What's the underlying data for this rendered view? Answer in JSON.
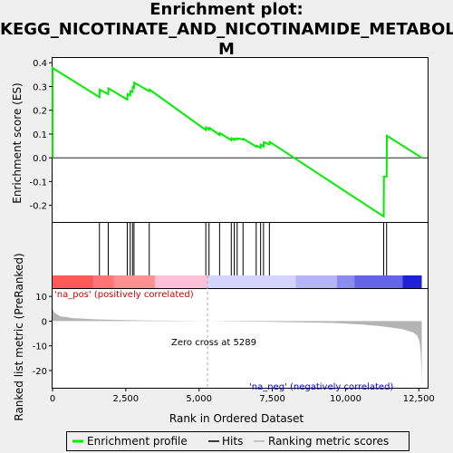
{
  "title": "Enrichment plot:\nKEGG_NICOTINATE_AND_NICOTINAMIDE_METABOLIS\nM",
  "colors": {
    "background": "#efefef",
    "plot_bg": "#ffffff",
    "es_line": "#00ee00",
    "hit": "#000000",
    "metric_fill": "#b4b4b4",
    "pos_label": "#cc0000",
    "neg_label": "#0000cc"
  },
  "chart_data": {
    "type": "line",
    "xlabel": "Rank in Ordered Dataset",
    "ylabel_es": "Enrichment score (ES)",
    "ylabel_metric": "Ranked list metric (PreRanked)",
    "x_ticks": [
      "0",
      "2,500",
      "5,000",
      "7,500",
      "10,000",
      "12,500"
    ],
    "x_tick_values": [
      0,
      2500,
      5000,
      7500,
      10000,
      12500
    ],
    "es_y_ticks": [
      "0.4",
      "0.3",
      "0.2",
      "0.1",
      "0.0",
      "-0.1",
      "-0.2"
    ],
    "es_y_tick_values": [
      0.4,
      0.3,
      0.2,
      0.1,
      0.0,
      -0.1,
      -0.2
    ],
    "metric_y_ticks": [
      "10",
      "0",
      "-10",
      "-20"
    ],
    "metric_y_tick_values": [
      10,
      0,
      -10,
      -20
    ],
    "xlim": [
      0,
      12800
    ],
    "es_ylim": [
      -0.27,
      0.42
    ],
    "metric_ylim": [
      -27,
      13
    ],
    "es_curve": [
      [
        0,
        0.0
      ],
      [
        1,
        0.378
      ],
      [
        1600,
        0.255
      ],
      [
        1610,
        0.287
      ],
      [
        1900,
        0.268
      ],
      [
        1910,
        0.292
      ],
      [
        2550,
        0.245
      ],
      [
        2560,
        0.268
      ],
      [
        2650,
        0.262
      ],
      [
        2660,
        0.281
      ],
      [
        2730,
        0.277
      ],
      [
        2740,
        0.298
      ],
      [
        2780,
        0.295
      ],
      [
        2790,
        0.316
      ],
      [
        3300,
        0.28
      ],
      [
        3310,
        0.287
      ],
      [
        5230,
        0.117
      ],
      [
        5240,
        0.128
      ],
      [
        5340,
        0.118
      ],
      [
        5350,
        0.126
      ],
      [
        5700,
        0.096
      ],
      [
        5710,
        0.104
      ],
      [
        6100,
        0.074
      ],
      [
        6110,
        0.082
      ],
      [
        6200,
        0.075
      ],
      [
        6210,
        0.081
      ],
      [
        6300,
        0.077
      ],
      [
        6310,
        0.082
      ],
      [
        6500,
        0.077
      ],
      [
        6510,
        0.08
      ],
      [
        6950,
        0.047
      ],
      [
        6960,
        0.051
      ],
      [
        7100,
        0.042
      ],
      [
        7110,
        0.055
      ],
      [
        7200,
        0.047
      ],
      [
        7210,
        0.066
      ],
      [
        7400,
        0.056
      ],
      [
        7410,
        0.067
      ],
      [
        11300,
        -0.247
      ],
      [
        11310,
        -0.079
      ],
      [
        11400,
        -0.079
      ],
      [
        11410,
        0.093
      ],
      [
        12600,
        0.0
      ]
    ],
    "hits": [
      1600,
      1900,
      2550,
      2650,
      2730,
      2780,
      3300,
      5230,
      5340,
      5700,
      6100,
      6200,
      6300,
      6500,
      6950,
      7100,
      7200,
      7400,
      11300,
      11400
    ],
    "metric_curve": [
      [
        0,
        5.0
      ],
      [
        60,
        3.5
      ],
      [
        250,
        2.0
      ],
      [
        700,
        1.2
      ],
      [
        1500,
        0.7
      ],
      [
        3000,
        0.3
      ],
      [
        5289,
        0.0
      ],
      [
        7500,
        -0.3
      ],
      [
        9500,
        -0.7
      ],
      [
        10500,
        -1.3
      ],
      [
        11300,
        -2.2
      ],
      [
        11900,
        -3.2
      ],
      [
        12300,
        -4.5
      ],
      [
        12450,
        -6.0
      ],
      [
        12520,
        -8.0
      ],
      [
        12560,
        -12.0
      ],
      [
        12590,
        -20.0
      ],
      [
        12600,
        -26.0
      ]
    ],
    "color_bar": [
      {
        "from": 0,
        "to": 1400,
        "color": "#ff5a5a"
      },
      {
        "from": 1400,
        "to": 2100,
        "color": "#ff7474"
      },
      {
        "from": 2100,
        "to": 3500,
        "color": "#ff9090"
      },
      {
        "from": 3500,
        "to": 5289,
        "color": "#ffc0d8"
      },
      {
        "from": 5289,
        "to": 8300,
        "color": "#d4d4ff"
      },
      {
        "from": 8300,
        "to": 9700,
        "color": "#b4b4f8"
      },
      {
        "from": 9700,
        "to": 10300,
        "color": "#8c8cf0"
      },
      {
        "from": 10300,
        "to": 11950,
        "color": "#6464e8"
      },
      {
        "from": 11950,
        "to": 12600,
        "color": "#2020d8"
      }
    ],
    "zero_cross": 5289,
    "annotations": {
      "pos": "'na_pos' (positively correlated)",
      "neg": "'na_neg' (negatively correlated)",
      "zero_cross": "Zero cross at 5289"
    },
    "legend": [
      {
        "label": "Enrichment profile",
        "kind": "line",
        "color": "#00ee00"
      },
      {
        "label": "Hits",
        "kind": "line",
        "color": "#000000"
      },
      {
        "label": "Ranking metric scores",
        "kind": "line",
        "color": "#b4b4b4"
      }
    ]
  }
}
